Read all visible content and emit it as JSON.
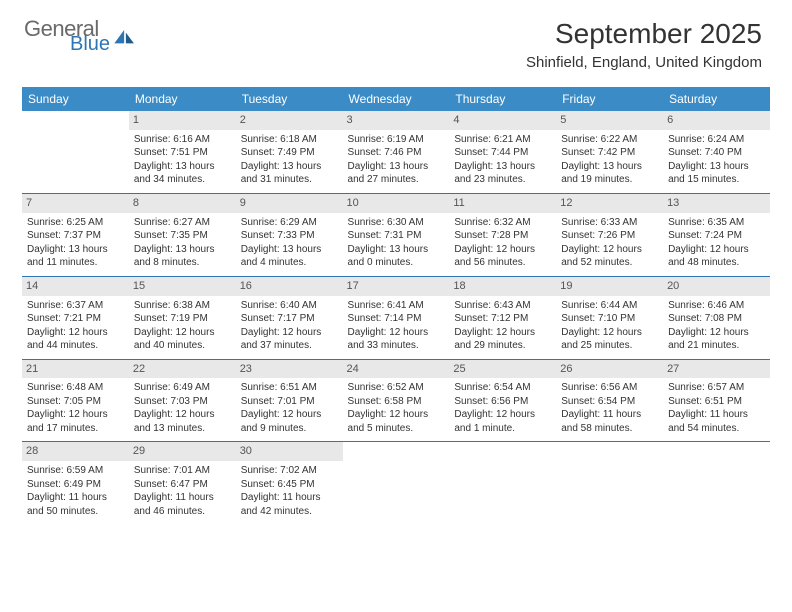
{
  "logo": {
    "general": "General",
    "blue": "Blue"
  },
  "title": "September 2025",
  "location": "Shinfield, England, United Kingdom",
  "colors": {
    "header_bg": "#3b8bc6",
    "daynum_bg": "#e8e8e8",
    "rule": "#2e75b6"
  },
  "day_names": [
    "Sunday",
    "Monday",
    "Tuesday",
    "Wednesday",
    "Thursday",
    "Friday",
    "Saturday"
  ],
  "weeks": [
    [
      {
        "num": "",
        "sunrise": "",
        "sunset": "",
        "daylight": ""
      },
      {
        "num": "1",
        "sunrise": "Sunrise: 6:16 AM",
        "sunset": "Sunset: 7:51 PM",
        "daylight": "Daylight: 13 hours and 34 minutes."
      },
      {
        "num": "2",
        "sunrise": "Sunrise: 6:18 AM",
        "sunset": "Sunset: 7:49 PM",
        "daylight": "Daylight: 13 hours and 31 minutes."
      },
      {
        "num": "3",
        "sunrise": "Sunrise: 6:19 AM",
        "sunset": "Sunset: 7:46 PM",
        "daylight": "Daylight: 13 hours and 27 minutes."
      },
      {
        "num": "4",
        "sunrise": "Sunrise: 6:21 AM",
        "sunset": "Sunset: 7:44 PM",
        "daylight": "Daylight: 13 hours and 23 minutes."
      },
      {
        "num": "5",
        "sunrise": "Sunrise: 6:22 AM",
        "sunset": "Sunset: 7:42 PM",
        "daylight": "Daylight: 13 hours and 19 minutes."
      },
      {
        "num": "6",
        "sunrise": "Sunrise: 6:24 AM",
        "sunset": "Sunset: 7:40 PM",
        "daylight": "Daylight: 13 hours and 15 minutes."
      }
    ],
    [
      {
        "num": "7",
        "sunrise": "Sunrise: 6:25 AM",
        "sunset": "Sunset: 7:37 PM",
        "daylight": "Daylight: 13 hours and 11 minutes."
      },
      {
        "num": "8",
        "sunrise": "Sunrise: 6:27 AM",
        "sunset": "Sunset: 7:35 PM",
        "daylight": "Daylight: 13 hours and 8 minutes."
      },
      {
        "num": "9",
        "sunrise": "Sunrise: 6:29 AM",
        "sunset": "Sunset: 7:33 PM",
        "daylight": "Daylight: 13 hours and 4 minutes."
      },
      {
        "num": "10",
        "sunrise": "Sunrise: 6:30 AM",
        "sunset": "Sunset: 7:31 PM",
        "daylight": "Daylight: 13 hours and 0 minutes."
      },
      {
        "num": "11",
        "sunrise": "Sunrise: 6:32 AM",
        "sunset": "Sunset: 7:28 PM",
        "daylight": "Daylight: 12 hours and 56 minutes."
      },
      {
        "num": "12",
        "sunrise": "Sunrise: 6:33 AM",
        "sunset": "Sunset: 7:26 PM",
        "daylight": "Daylight: 12 hours and 52 minutes."
      },
      {
        "num": "13",
        "sunrise": "Sunrise: 6:35 AM",
        "sunset": "Sunset: 7:24 PM",
        "daylight": "Daylight: 12 hours and 48 minutes."
      }
    ],
    [
      {
        "num": "14",
        "sunrise": "Sunrise: 6:37 AM",
        "sunset": "Sunset: 7:21 PM",
        "daylight": "Daylight: 12 hours and 44 minutes."
      },
      {
        "num": "15",
        "sunrise": "Sunrise: 6:38 AM",
        "sunset": "Sunset: 7:19 PM",
        "daylight": "Daylight: 12 hours and 40 minutes."
      },
      {
        "num": "16",
        "sunrise": "Sunrise: 6:40 AM",
        "sunset": "Sunset: 7:17 PM",
        "daylight": "Daylight: 12 hours and 37 minutes."
      },
      {
        "num": "17",
        "sunrise": "Sunrise: 6:41 AM",
        "sunset": "Sunset: 7:14 PM",
        "daylight": "Daylight: 12 hours and 33 minutes."
      },
      {
        "num": "18",
        "sunrise": "Sunrise: 6:43 AM",
        "sunset": "Sunset: 7:12 PM",
        "daylight": "Daylight: 12 hours and 29 minutes."
      },
      {
        "num": "19",
        "sunrise": "Sunrise: 6:44 AM",
        "sunset": "Sunset: 7:10 PM",
        "daylight": "Daylight: 12 hours and 25 minutes."
      },
      {
        "num": "20",
        "sunrise": "Sunrise: 6:46 AM",
        "sunset": "Sunset: 7:08 PM",
        "daylight": "Daylight: 12 hours and 21 minutes."
      }
    ],
    [
      {
        "num": "21",
        "sunrise": "Sunrise: 6:48 AM",
        "sunset": "Sunset: 7:05 PM",
        "daylight": "Daylight: 12 hours and 17 minutes."
      },
      {
        "num": "22",
        "sunrise": "Sunrise: 6:49 AM",
        "sunset": "Sunset: 7:03 PM",
        "daylight": "Daylight: 12 hours and 13 minutes."
      },
      {
        "num": "23",
        "sunrise": "Sunrise: 6:51 AM",
        "sunset": "Sunset: 7:01 PM",
        "daylight": "Daylight: 12 hours and 9 minutes."
      },
      {
        "num": "24",
        "sunrise": "Sunrise: 6:52 AM",
        "sunset": "Sunset: 6:58 PM",
        "daylight": "Daylight: 12 hours and 5 minutes."
      },
      {
        "num": "25",
        "sunrise": "Sunrise: 6:54 AM",
        "sunset": "Sunset: 6:56 PM",
        "daylight": "Daylight: 12 hours and 1 minute."
      },
      {
        "num": "26",
        "sunrise": "Sunrise: 6:56 AM",
        "sunset": "Sunset: 6:54 PM",
        "daylight": "Daylight: 11 hours and 58 minutes."
      },
      {
        "num": "27",
        "sunrise": "Sunrise: 6:57 AM",
        "sunset": "Sunset: 6:51 PM",
        "daylight": "Daylight: 11 hours and 54 minutes."
      }
    ],
    [
      {
        "num": "28",
        "sunrise": "Sunrise: 6:59 AM",
        "sunset": "Sunset: 6:49 PM",
        "daylight": "Daylight: 11 hours and 50 minutes."
      },
      {
        "num": "29",
        "sunrise": "Sunrise: 7:01 AM",
        "sunset": "Sunset: 6:47 PM",
        "daylight": "Daylight: 11 hours and 46 minutes."
      },
      {
        "num": "30",
        "sunrise": "Sunrise: 7:02 AM",
        "sunset": "Sunset: 6:45 PM",
        "daylight": "Daylight: 11 hours and 42 minutes."
      },
      {
        "num": "",
        "sunrise": "",
        "sunset": "",
        "daylight": ""
      },
      {
        "num": "",
        "sunrise": "",
        "sunset": "",
        "daylight": ""
      },
      {
        "num": "",
        "sunrise": "",
        "sunset": "",
        "daylight": ""
      },
      {
        "num": "",
        "sunrise": "",
        "sunset": "",
        "daylight": ""
      }
    ]
  ]
}
